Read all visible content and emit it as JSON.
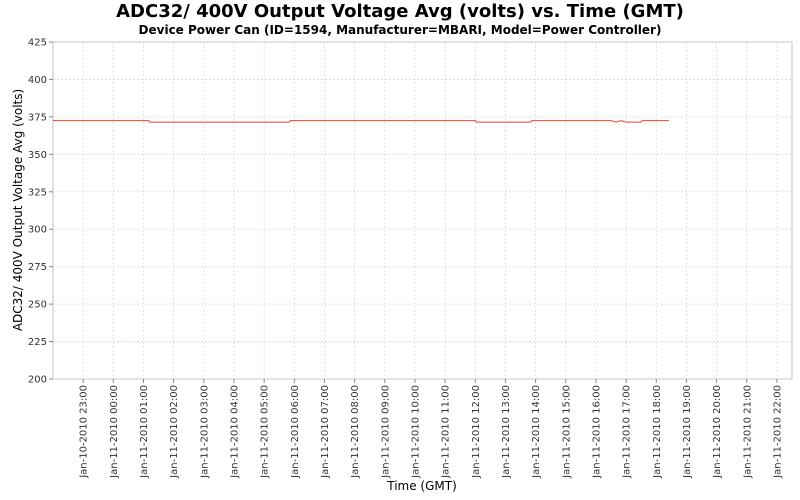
{
  "chart_data": {
    "type": "line",
    "title": "ADC32/ 400V Output Voltage Avg (volts) vs. Time (GMT)",
    "subtitle": "Device Power Can (ID=1594, Manufacturer=MBARI, Model=Power Controller)",
    "xlabel": "Time (GMT)",
    "ylabel": "ADC32/ 400V Output Voltage Avg (volts)",
    "ylim": [
      200,
      425
    ],
    "yticks": [
      200,
      225,
      250,
      275,
      300,
      325,
      350,
      375,
      400,
      425
    ],
    "xlim": [
      "2010-01-10 22:00",
      "2010-01-11 22:30"
    ],
    "xticks": [
      {
        "t": "2010-01-10 23:00",
        "label": "Jan-10-2010 23:00"
      },
      {
        "t": "2010-01-11 00:00",
        "label": "Jan-11-2010 00:00"
      },
      {
        "t": "2010-01-11 01:00",
        "label": "Jan-11-2010 01:00"
      },
      {
        "t": "2010-01-11 02:00",
        "label": "Jan-11-2010 02:00"
      },
      {
        "t": "2010-01-11 03:00",
        "label": "Jan-11-2010 03:00"
      },
      {
        "t": "2010-01-11 04:00",
        "label": "Jan-11-2010 04:00"
      },
      {
        "t": "2010-01-11 05:00",
        "label": "Jan-11-2010 05:00"
      },
      {
        "t": "2010-01-11 06:00",
        "label": "Jan-11-2010 06:00"
      },
      {
        "t": "2010-01-11 07:00",
        "label": "Jan-11-2010 07:00"
      },
      {
        "t": "2010-01-11 08:00",
        "label": "Jan-11-2010 08:00"
      },
      {
        "t": "2010-01-11 09:00",
        "label": "Jan-11-2010 09:00"
      },
      {
        "t": "2010-01-11 10:00",
        "label": "Jan-11-2010 10:00"
      },
      {
        "t": "2010-01-11 11:00",
        "label": "Jan-11-2010 11:00"
      },
      {
        "t": "2010-01-11 12:00",
        "label": "Jan-11-2010 12:00"
      },
      {
        "t": "2010-01-11 13:00",
        "label": "Jan-11-2010 13:00"
      },
      {
        "t": "2010-01-11 14:00",
        "label": "Jan-11-2010 14:00"
      },
      {
        "t": "2010-01-11 15:00",
        "label": "Jan-11-2010 15:00"
      },
      {
        "t": "2010-01-11 16:00",
        "label": "Jan-11-2010 16:00"
      },
      {
        "t": "2010-01-11 17:00",
        "label": "Jan-11-2010 17:00"
      },
      {
        "t": "2010-01-11 18:00",
        "label": "Jan-11-2010 18:00"
      },
      {
        "t": "2010-01-11 19:00",
        "label": "Jan-11-2010 19:00"
      },
      {
        "t": "2010-01-11 20:00",
        "label": "Jan-11-2010 20:00"
      },
      {
        "t": "2010-01-11 21:00",
        "label": "Jan-11-2010 21:00"
      },
      {
        "t": "2010-01-11 22:00",
        "label": "Jan-11-2010 22:00"
      }
    ],
    "grid": true,
    "series": [
      {
        "color": "#e8442a",
        "points": [
          {
            "x": "2010-01-10 22:00",
            "y": 372.5
          },
          {
            "x": "2010-01-11 01:10",
            "y": 372.5
          },
          {
            "x": "2010-01-11 01:12",
            "y": 371.5
          },
          {
            "x": "2010-01-11 05:50",
            "y": 371.5
          },
          {
            "x": "2010-01-11 05:52",
            "y": 372.5
          },
          {
            "x": "2010-01-11 12:00",
            "y": 372.5
          },
          {
            "x": "2010-01-11 12:02",
            "y": 371.5
          },
          {
            "x": "2010-01-11 13:50",
            "y": 371.5
          },
          {
            "x": "2010-01-11 13:52",
            "y": 372.5
          },
          {
            "x": "2010-01-11 16:30",
            "y": 372.5
          },
          {
            "x": "2010-01-11 16:40",
            "y": 371.5
          },
          {
            "x": "2010-01-11 16:50",
            "y": 372.5
          },
          {
            "x": "2010-01-11 17:00",
            "y": 371.5
          },
          {
            "x": "2010-01-11 17:30",
            "y": 371.5
          },
          {
            "x": "2010-01-11 17:32",
            "y": 372.5
          },
          {
            "x": "2010-01-11 18:25",
            "y": 372.5
          }
        ]
      }
    ]
  }
}
